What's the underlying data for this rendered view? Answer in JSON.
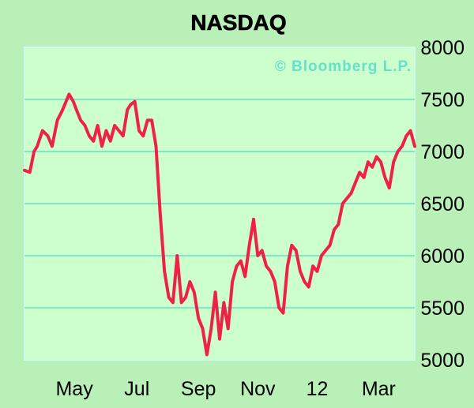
{
  "chart_data": {
    "type": "line",
    "title": "NASDAQ",
    "credit": "© Bloomberg L.P.",
    "xlabel": "",
    "ylabel": "",
    "ylim": [
      5000,
      8000
    ],
    "yticks": [
      "8000",
      "7500",
      "7000",
      "6500",
      "6000",
      "5500",
      "5000"
    ],
    "ytick_values": [
      8000,
      7500,
      7000,
      6500,
      6000,
      5500,
      5000
    ],
    "xticks": [
      "May",
      "Jul",
      "Sep",
      "Nov",
      "12",
      "Mar"
    ],
    "xtick_positions": [
      2.35,
      5.3,
      8.2,
      11.0,
      13.8,
      16.7
    ],
    "xlim": [
      0,
      18.4
    ],
    "grid": true,
    "line_color": "#ee2244",
    "series": [
      {
        "name": "",
        "x": [
          0.0,
          0.25,
          0.45,
          0.6,
          0.85,
          1.1,
          1.3,
          1.55,
          1.75,
          1.9,
          2.1,
          2.3,
          2.45,
          2.65,
          2.85,
          3.05,
          3.25,
          3.45,
          3.65,
          3.85,
          4.05,
          4.25,
          4.45,
          4.65,
          4.85,
          5.0,
          5.2,
          5.4,
          5.6,
          5.8,
          6.0,
          6.2,
          6.4,
          6.6,
          6.8,
          7.0,
          7.2,
          7.4,
          7.6,
          7.8,
          8.0,
          8.2,
          8.4,
          8.6,
          8.8,
          9.0,
          9.2,
          9.4,
          9.6,
          9.8,
          10.0,
          10.2,
          10.4,
          10.6,
          10.8,
          11.0,
          11.2,
          11.4,
          11.6,
          11.8,
          12.0,
          12.2,
          12.4,
          12.6,
          12.8,
          13.0,
          13.2,
          13.4,
          13.6,
          13.8,
          14.0,
          14.2,
          14.4,
          14.6,
          14.8,
          15.0,
          15.2,
          15.4,
          15.6,
          15.8,
          16.0,
          16.2,
          16.4,
          16.6,
          16.8,
          17.0,
          17.2,
          17.4,
          17.6,
          17.8,
          18.0,
          18.2,
          18.4
        ],
        "values": [
          6820,
          6800,
          7000,
          7050,
          7200,
          7150,
          7050,
          7300,
          7380,
          7450,
          7550,
          7480,
          7400,
          7300,
          7250,
          7150,
          7100,
          7250,
          7050,
          7200,
          7100,
          7250,
          7200,
          7150,
          7400,
          7450,
          7480,
          7200,
          7150,
          7300,
          7300,
          7050,
          6400,
          5850,
          5600,
          5550,
          6000,
          5550,
          5600,
          5750,
          5650,
          5400,
          5300,
          5050,
          5300,
          5650,
          5200,
          5550,
          5300,
          5750,
          5900,
          5950,
          5800,
          6100,
          6350,
          6000,
          6050,
          5900,
          5850,
          5750,
          5500,
          5450,
          5900,
          6100,
          6050,
          5850,
          5750,
          5700,
          5900,
          5850,
          6000,
          6050,
          6100,
          6250,
          6300,
          6500,
          6550,
          6600,
          6700,
          6800,
          6750,
          6900,
          6850,
          6950,
          6900,
          6750,
          6650,
          6900,
          7000,
          7050,
          7150,
          7200,
          7050
        ]
      }
    ]
  }
}
